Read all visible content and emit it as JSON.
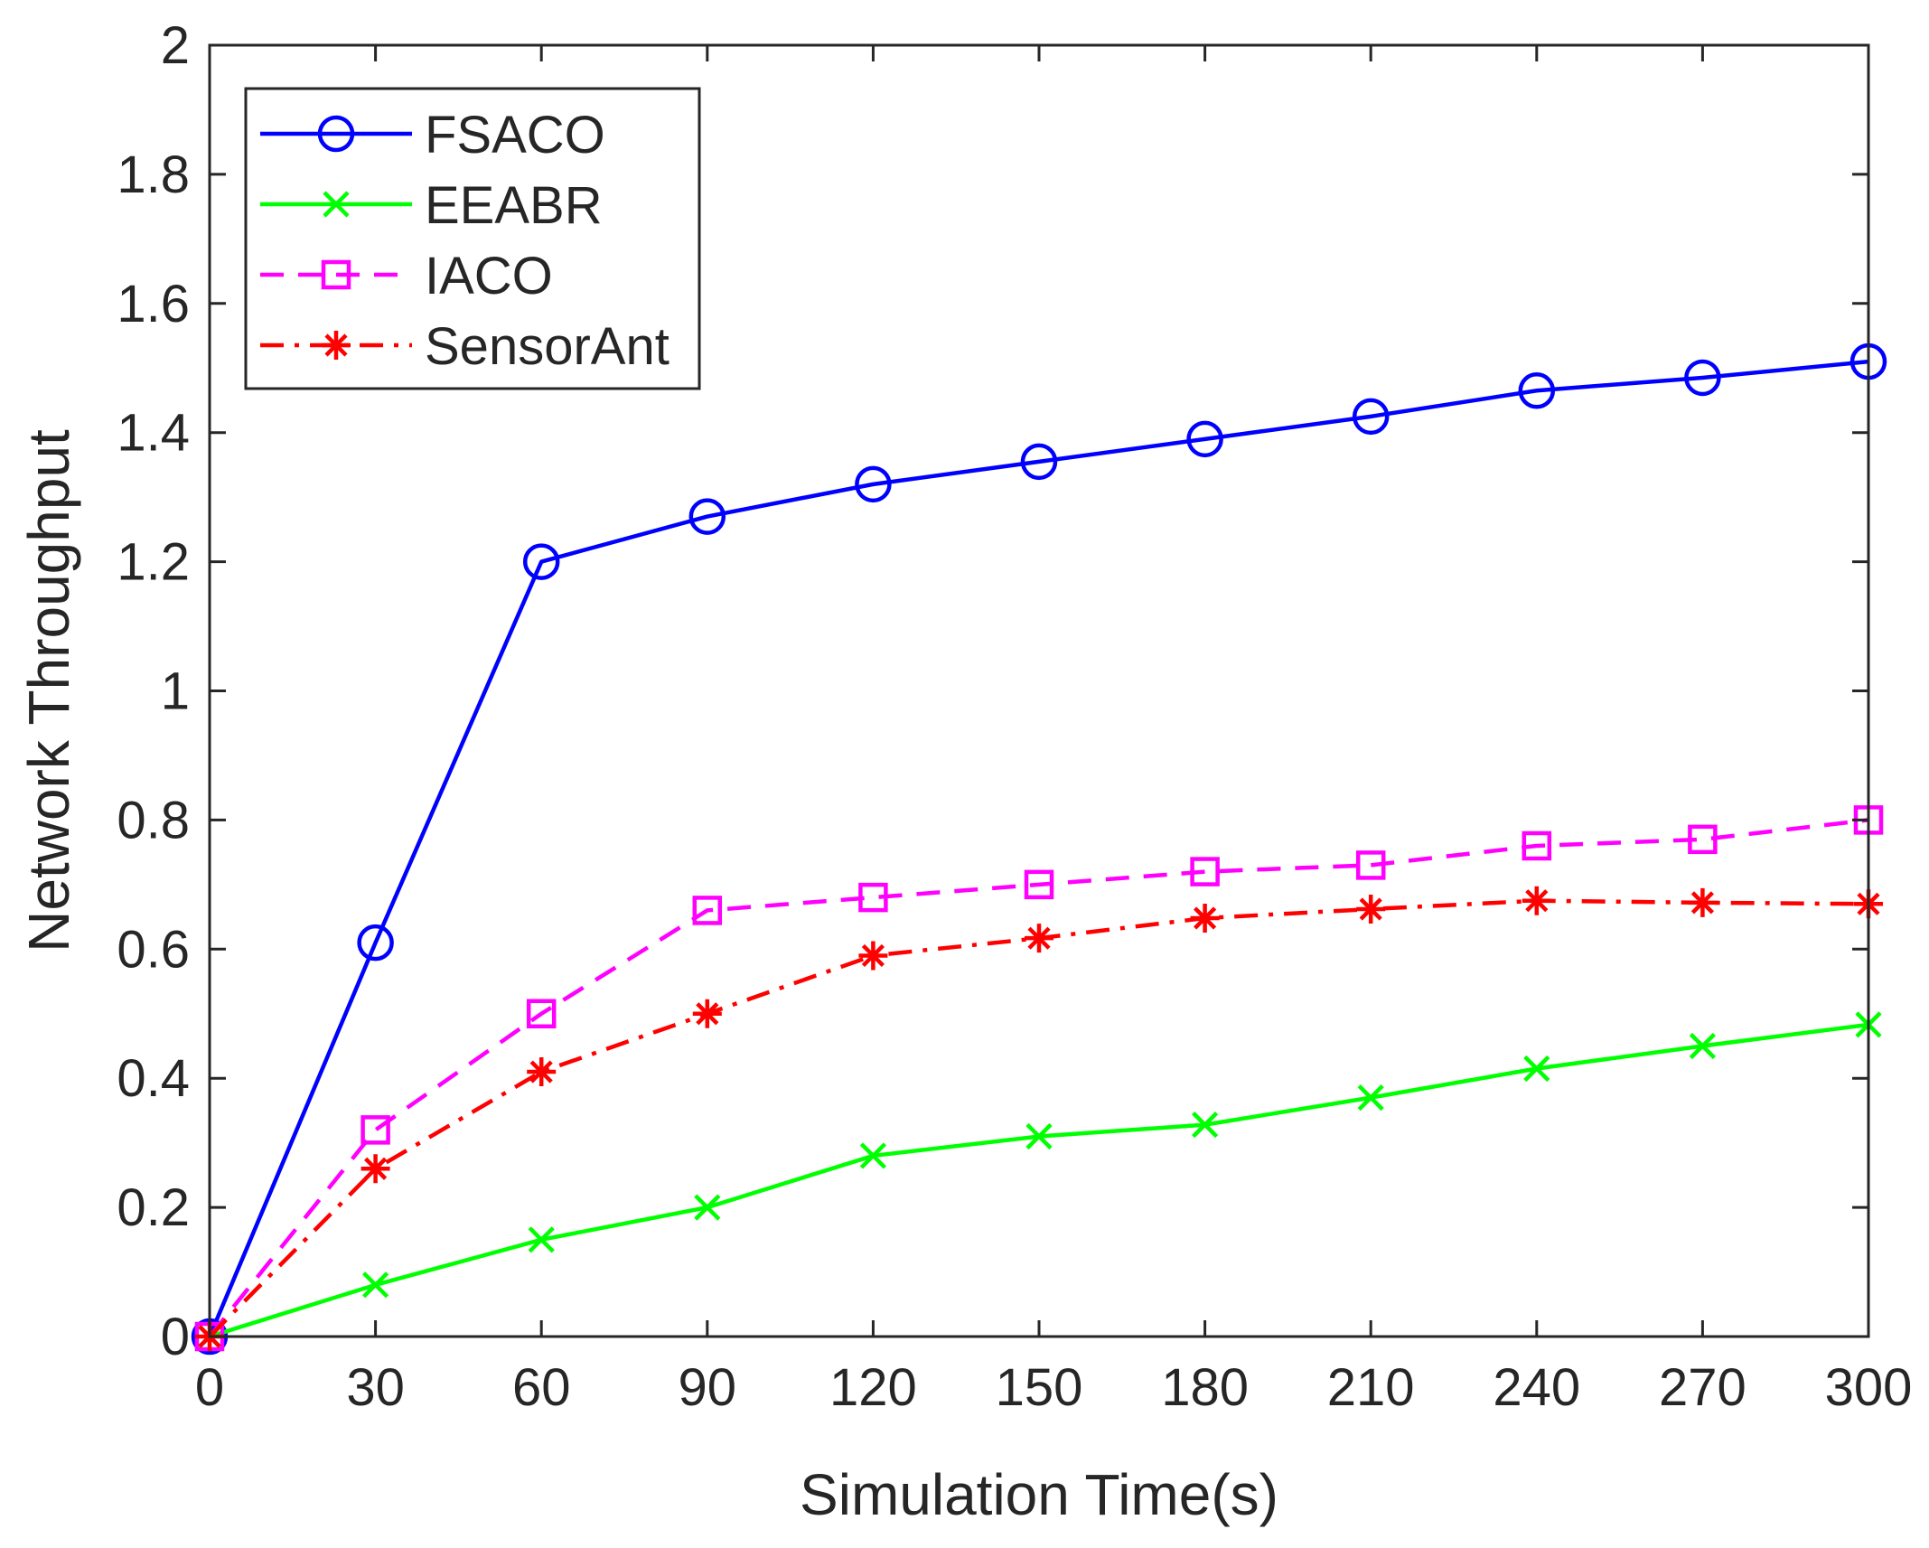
{
  "chart_data": {
    "type": "line",
    "title": "",
    "xlabel": "Simulation Time(s)",
    "ylabel": "Network Throughput",
    "x": [
      0,
      30,
      60,
      90,
      120,
      150,
      180,
      210,
      240,
      270,
      300
    ],
    "xlim": [
      0,
      300
    ],
    "ylim": [
      0,
      2
    ],
    "xticks": [
      "0",
      "30",
      "60",
      "90",
      "120",
      "150",
      "180",
      "210",
      "240",
      "270",
      "300"
    ],
    "yticks": [
      "0",
      "0.2",
      "0.4",
      "0.6",
      "0.8",
      "1",
      "1.2",
      "1.4",
      "1.6",
      "1.8",
      "2"
    ],
    "grid": false,
    "legend_position": "top-left",
    "series": [
      {
        "name": "FSACO",
        "color": "#0000ff",
        "marker": "circle",
        "line_style": "solid",
        "values": [
          0,
          0.61,
          1.2,
          1.27,
          1.32,
          1.355,
          1.39,
          1.425,
          1.465,
          1.485,
          1.51
        ]
      },
      {
        "name": "EEABR",
        "color": "#00ff00",
        "marker": "x",
        "line_style": "solid",
        "values": [
          0,
          0.08,
          0.15,
          0.2,
          0.28,
          0.31,
          0.328,
          0.37,
          0.415,
          0.45,
          0.483
        ]
      },
      {
        "name": "IACO",
        "color": "#ff00ff",
        "marker": "square",
        "line_style": "dashed",
        "values": [
          0,
          0.32,
          0.5,
          0.66,
          0.68,
          0.7,
          0.72,
          0.73,
          0.76,
          0.77,
          0.8
        ]
      },
      {
        "name": "SensorAnt",
        "color": "#ff0000",
        "marker": "asterisk",
        "line_style": "dashdot",
        "values": [
          0,
          0.26,
          0.41,
          0.5,
          0.59,
          0.617,
          0.648,
          0.662,
          0.675,
          0.672,
          0.67
        ]
      }
    ]
  }
}
